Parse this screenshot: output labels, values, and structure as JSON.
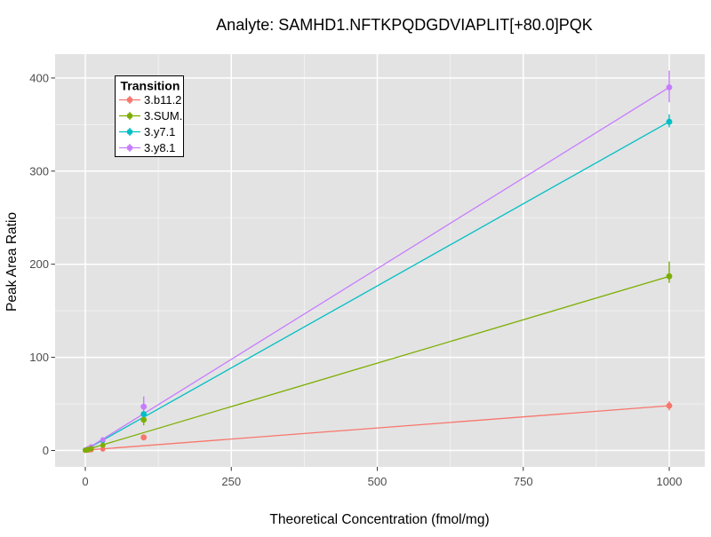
{
  "title": "Analyte: SAMHD1.NFTKPQDGDVIAPLIT[+80.0]PQK",
  "chart_data": {
    "type": "scatter",
    "title": "Analyte: SAMHD1.NFTKPQDGDVIAPLIT[+80.0]PQK",
    "xlabel": "Theoretical Concentration (fmol/mg)",
    "ylabel": "Peak Area Ratio",
    "xlim": [
      -52,
      1062
    ],
    "ylim": [
      -10,
      425
    ],
    "x_ticks": [
      0,
      250,
      500,
      750,
      1000
    ],
    "x_minor_ticks": [
      125,
      375,
      625,
      875
    ],
    "y_ticks": [
      0,
      100,
      200,
      300,
      400
    ],
    "y_minor_ticks": [
      50,
      150,
      250,
      350
    ],
    "grid": true,
    "legend": {
      "title": "Transition",
      "position": "top-left-inside"
    },
    "series": [
      {
        "name": "3.b11.2",
        "color": "#F8766D",
        "fit_line": [
          [
            0,
            0.3
          ],
          [
            1000,
            48
          ]
        ],
        "points": [
          [
            0,
            0.1
          ],
          [
            2,
            0.2
          ],
          [
            5,
            0.3
          ],
          [
            10,
            0.6
          ],
          [
            30,
            1.5
          ],
          [
            100,
            14
          ],
          [
            1000,
            48
          ]
        ],
        "error_bars": [
          {
            "x": 1000,
            "ylo": 43,
            "yhi": 53
          }
        ]
      },
      {
        "name": "3.SUM.",
        "color": "#7CAE00",
        "fit_line": [
          [
            0,
            0.5
          ],
          [
            1000,
            187
          ]
        ],
        "points": [
          [
            0,
            0.3
          ],
          [
            2,
            0.6
          ],
          [
            5,
            1.0
          ],
          [
            10,
            2.0
          ],
          [
            30,
            5.6
          ],
          [
            100,
            33
          ],
          [
            1000,
            187
          ]
        ],
        "error_bars": [
          {
            "x": 100,
            "ylo": 27,
            "yhi": 39
          },
          {
            "x": 1000,
            "ylo": 180,
            "yhi": 203
          }
        ]
      },
      {
        "name": "3.y7.1",
        "color": "#00BFC4",
        "fit_line": [
          [
            0,
            0.5
          ],
          [
            1000,
            353
          ]
        ],
        "points": [
          [
            0,
            0.4
          ],
          [
            2,
            0.8
          ],
          [
            5,
            1.8
          ],
          [
            10,
            3.5
          ],
          [
            30,
            10.5
          ],
          [
            100,
            39
          ],
          [
            1000,
            353
          ]
        ],
        "error_bars": [
          {
            "x": 100,
            "ylo": 36,
            "yhi": 43
          },
          {
            "x": 1000,
            "ylo": 347,
            "yhi": 361
          }
        ]
      },
      {
        "name": "3.y8.1",
        "color": "#C77CFF",
        "fit_line": [
          [
            0,
            0.5
          ],
          [
            1000,
            390
          ]
        ],
        "points": [
          [
            0,
            0.5
          ],
          [
            2,
            1.0
          ],
          [
            5,
            2.0
          ],
          [
            10,
            4.0
          ],
          [
            30,
            11.5
          ],
          [
            100,
            47
          ],
          [
            1000,
            390
          ]
        ],
        "error_bars": [
          {
            "x": 100,
            "ylo": 43,
            "yhi": 58
          },
          {
            "x": 1000,
            "ylo": 374,
            "yhi": 408
          }
        ]
      }
    ]
  },
  "style": {
    "panel_bg": "#E3E3E3",
    "grid_color": "#FFFFFF",
    "tick_color": "#333333",
    "tick_label_color": "#4D4D4D",
    "axis_title_color": "#000000",
    "title_color": "#000000",
    "legend_bg": "#FFFFFF",
    "legend_border": "#000000",
    "legend_text_color": "#000000"
  }
}
